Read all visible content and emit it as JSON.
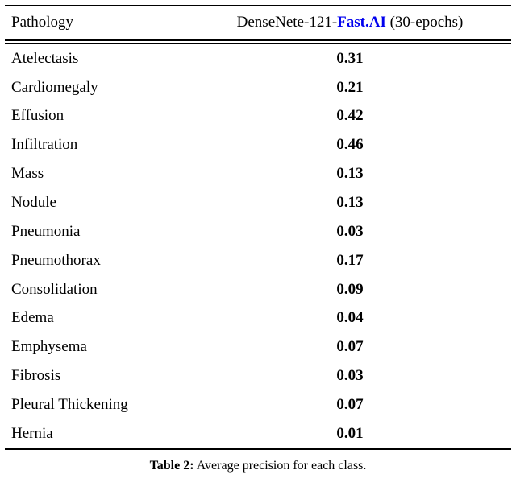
{
  "header": {
    "col1": "Pathology",
    "col2_prefix": "DenseNete-121-",
    "col2_brand": "Fast.AI",
    "col2_suffix": " (30-epochs)"
  },
  "rows": [
    {
      "name": "Atelectasis",
      "value": "0.31"
    },
    {
      "name": "Cardiomegaly",
      "value": "0.21"
    },
    {
      "name": "Effusion",
      "value": "0.42"
    },
    {
      "name": "Infiltration",
      "value": "0.46"
    },
    {
      "name": "Mass",
      "value": "0.13"
    },
    {
      "name": "Nodule",
      "value": "0.13"
    },
    {
      "name": "Pneumonia",
      "value": "0.03"
    },
    {
      "name": "Pneumothorax",
      "value": "0.17"
    },
    {
      "name": "Consolidation",
      "value": "0.09"
    },
    {
      "name": "Edema",
      "value": "0.04"
    },
    {
      "name": "Emphysema",
      "value": "0.07"
    },
    {
      "name": "Fibrosis",
      "value": "0.03"
    },
    {
      "name": "Pleural Thickening",
      "value": "0.07"
    },
    {
      "name": "Hernia",
      "value": "0.01"
    }
  ],
  "caption": {
    "label": "Table 2:",
    "text": "Average precision for each class."
  },
  "colors": {
    "brand_blue": "#0000EE"
  },
  "chart_data": {
    "type": "table",
    "title": "Table 2: Average precision for each class.",
    "columns": [
      "Pathology",
      "DenseNete-121-Fast.AI (30-epochs)"
    ],
    "categories": [
      "Atelectasis",
      "Cardiomegaly",
      "Effusion",
      "Infiltration",
      "Mass",
      "Nodule",
      "Pneumonia",
      "Pneumothorax",
      "Consolidation",
      "Edema",
      "Emphysema",
      "Fibrosis",
      "Pleural Thickening",
      "Hernia"
    ],
    "values": [
      0.31,
      0.21,
      0.42,
      0.46,
      0.13,
      0.13,
      0.03,
      0.17,
      0.09,
      0.04,
      0.07,
      0.03,
      0.07,
      0.01
    ]
  }
}
